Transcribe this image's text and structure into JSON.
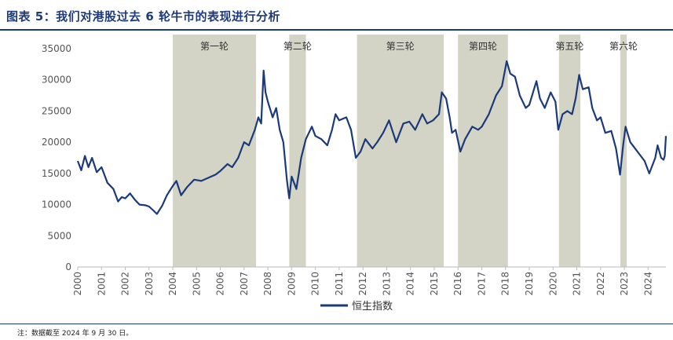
{
  "figure": {
    "title": "图表 5：我们对港股过去 6 轮牛市的表现进行分析",
    "note": "注：数据截至 2024 年 9 月 30 日。"
  },
  "colors": {
    "title": "#1f3a78",
    "line": "#1b3a7a",
    "band": "#d3d3c6",
    "axis_text": "#555555"
  },
  "chart_data": {
    "type": "line",
    "title": "",
    "xlabel": "",
    "ylabel": "",
    "xlim": [
      2000,
      2024.75
    ],
    "ylim": [
      0,
      35000
    ],
    "y_ticks": [
      0,
      5000,
      10000,
      15000,
      20000,
      25000,
      30000,
      35000
    ],
    "x_ticks": [
      "2000",
      "2001",
      "2002",
      "2003",
      "2004",
      "2005",
      "2006",
      "2007",
      "2008",
      "2009",
      "2010",
      "2011",
      "2012",
      "2013",
      "2014",
      "2015",
      "2016",
      "2017",
      "2018",
      "2019",
      "2020",
      "2021",
      "2022",
      "2023",
      "2024"
    ],
    "grid": false,
    "legend": "bottom-center",
    "series": [
      {
        "name": "恒生指数",
        "points": [
          [
            2000.0,
            17000
          ],
          [
            2000.15,
            15500
          ],
          [
            2000.3,
            17800
          ],
          [
            2000.45,
            16000
          ],
          [
            2000.6,
            17500
          ],
          [
            2000.8,
            15200
          ],
          [
            2001.0,
            16000
          ],
          [
            2001.25,
            13500
          ],
          [
            2001.5,
            12500
          ],
          [
            2001.7,
            10500
          ],
          [
            2001.85,
            11200
          ],
          [
            2002.0,
            11000
          ],
          [
            2002.2,
            11800
          ],
          [
            2002.4,
            10800
          ],
          [
            2002.6,
            10000
          ],
          [
            2002.85,
            9900
          ],
          [
            2003.0,
            9700
          ],
          [
            2003.2,
            9000
          ],
          [
            2003.33,
            8500
          ],
          [
            2003.55,
            9800
          ],
          [
            2003.75,
            11500
          ],
          [
            2004.0,
            13000
          ],
          [
            2004.15,
            13800
          ],
          [
            2004.35,
            11500
          ],
          [
            2004.6,
            12800
          ],
          [
            2004.9,
            14000
          ],
          [
            2005.2,
            13800
          ],
          [
            2005.5,
            14300
          ],
          [
            2005.8,
            14800
          ],
          [
            2006.0,
            15400
          ],
          [
            2006.3,
            16500
          ],
          [
            2006.5,
            16000
          ],
          [
            2006.75,
            17500
          ],
          [
            2007.0,
            20000
          ],
          [
            2007.2,
            19500
          ],
          [
            2007.45,
            22000
          ],
          [
            2007.6,
            24000
          ],
          [
            2007.72,
            23000
          ],
          [
            2007.82,
            31500
          ],
          [
            2007.9,
            28000
          ],
          [
            2008.0,
            26500
          ],
          [
            2008.2,
            24000
          ],
          [
            2008.35,
            25500
          ],
          [
            2008.5,
            22000
          ],
          [
            2008.65,
            20000
          ],
          [
            2008.8,
            14000
          ],
          [
            2008.9,
            11000
          ],
          [
            2009.0,
            14500
          ],
          [
            2009.2,
            12500
          ],
          [
            2009.4,
            17500
          ],
          [
            2009.6,
            20500
          ],
          [
            2009.85,
            22500
          ],
          [
            2010.0,
            21000
          ],
          [
            2010.25,
            20500
          ],
          [
            2010.5,
            19500
          ],
          [
            2010.7,
            22000
          ],
          [
            2010.85,
            24500
          ],
          [
            2011.0,
            23500
          ],
          [
            2011.3,
            24000
          ],
          [
            2011.5,
            22000
          ],
          [
            2011.7,
            17500
          ],
          [
            2011.9,
            18500
          ],
          [
            2012.1,
            20500
          ],
          [
            2012.4,
            19000
          ],
          [
            2012.6,
            20000
          ],
          [
            2012.85,
            21500
          ],
          [
            2013.1,
            23500
          ],
          [
            2013.4,
            20000
          ],
          [
            2013.7,
            23000
          ],
          [
            2013.95,
            23300
          ],
          [
            2014.2,
            22000
          ],
          [
            2014.5,
            24500
          ],
          [
            2014.7,
            23000
          ],
          [
            2014.95,
            23500
          ],
          [
            2015.2,
            24500
          ],
          [
            2015.32,
            28000
          ],
          [
            2015.5,
            27000
          ],
          [
            2015.65,
            24000
          ],
          [
            2015.75,
            21500
          ],
          [
            2015.9,
            22000
          ],
          [
            2016.1,
            18500
          ],
          [
            2016.3,
            20500
          ],
          [
            2016.6,
            22500
          ],
          [
            2016.85,
            22000
          ],
          [
            2017.0,
            22500
          ],
          [
            2017.3,
            24500
          ],
          [
            2017.6,
            27500
          ],
          [
            2017.85,
            29000
          ],
          [
            2018.05,
            33000
          ],
          [
            2018.2,
            31000
          ],
          [
            2018.4,
            30500
          ],
          [
            2018.6,
            27500
          ],
          [
            2018.85,
            25500
          ],
          [
            2019.0,
            26000
          ],
          [
            2019.3,
            29800
          ],
          [
            2019.45,
            27000
          ],
          [
            2019.65,
            25500
          ],
          [
            2019.9,
            28000
          ],
          [
            2020.1,
            26500
          ],
          [
            2020.22,
            22000
          ],
          [
            2020.4,
            24500
          ],
          [
            2020.6,
            25000
          ],
          [
            2020.8,
            24500
          ],
          [
            2020.95,
            27000
          ],
          [
            2021.1,
            30800
          ],
          [
            2021.25,
            28500
          ],
          [
            2021.5,
            28800
          ],
          [
            2021.65,
            25500
          ],
          [
            2021.85,
            23500
          ],
          [
            2022.0,
            24000
          ],
          [
            2022.2,
            21500
          ],
          [
            2022.45,
            21800
          ],
          [
            2022.65,
            19000
          ],
          [
            2022.82,
            14800
          ],
          [
            2022.95,
            19500
          ],
          [
            2023.05,
            22500
          ],
          [
            2023.25,
            20000
          ],
          [
            2023.45,
            19000
          ],
          [
            2023.65,
            18000
          ],
          [
            2023.85,
            17000
          ],
          [
            2024.05,
            15000
          ],
          [
            2024.3,
            17500
          ],
          [
            2024.4,
            19500
          ],
          [
            2024.55,
            17500
          ],
          [
            2024.65,
            17200
          ],
          [
            2024.7,
            17800
          ],
          [
            2024.75,
            21000
          ]
        ]
      }
    ],
    "bands": [
      {
        "label": "第一轮",
        "start": 2004.0,
        "end": 2007.5
      },
      {
        "label": "第二轮",
        "start": 2008.9,
        "end": 2009.6
      },
      {
        "label": "第三轮",
        "start": 2011.75,
        "end": 2015.4
      },
      {
        "label": "第四轮",
        "start": 2016.0,
        "end": 2018.1
      },
      {
        "label": "第五轮",
        "start": 2020.25,
        "end": 2021.15
      },
      {
        "label": "第六轮",
        "start": 2022.83,
        "end": 2023.1
      }
    ]
  }
}
